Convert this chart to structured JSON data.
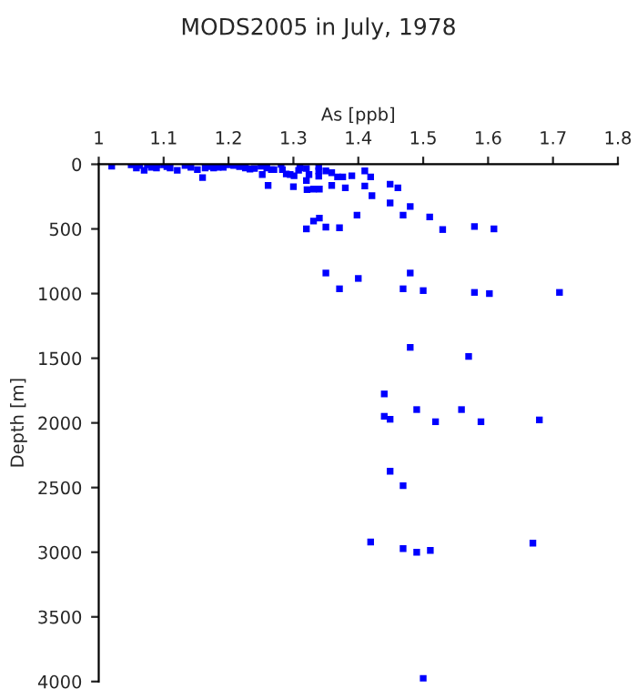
{
  "chart_data": {
    "type": "scatter",
    "title": "MODS2005 in July, 1978",
    "xlabel": "As [ppb]",
    "ylabel": "Depth [m]",
    "xlim": [
      1,
      1.8
    ],
    "xticks": [
      1,
      1.1,
      1.2,
      1.3,
      1.4,
      1.5,
      1.6,
      1.7,
      1.8
    ],
    "ylim": [
      4000,
      0
    ],
    "yticks": [
      0,
      500,
      1000,
      1500,
      2000,
      2500,
      3000,
      3500,
      4000
    ],
    "grid": false,
    "legend": false,
    "marker": "square",
    "series": [
      {
        "color": "#0000ff",
        "x": [
          1.02,
          1.05,
          1.058,
          1.063,
          1.07,
          1.075,
          1.081,
          1.089,
          1.09,
          1.1,
          1.105,
          1.11,
          1.121,
          1.133,
          1.142,
          1.152,
          1.16,
          1.164,
          1.17,
          1.177,
          1.184,
          1.192,
          1.2,
          1.208,
          1.217,
          1.226,
          1.233,
          1.24,
          1.25,
          1.252,
          1.259,
          1.261,
          1.266,
          1.27,
          1.281,
          1.283,
          1.289,
          1.295,
          1.3,
          1.301,
          1.308,
          1.31,
          1.32,
          1.32,
          1.321,
          1.324,
          1.331,
          1.339,
          1.339,
          1.339,
          1.34,
          1.35,
          1.359,
          1.359,
          1.368,
          1.376,
          1.38,
          1.39,
          1.41,
          1.41,
          1.419,
          1.421,
          1.449,
          1.449,
          1.461,
          1.48,
          1.469,
          1.51,
          1.53,
          1.398,
          1.331,
          1.34,
          1.32,
          1.35,
          1.371,
          1.579,
          1.609,
          1.35,
          1.4,
          1.48,
          1.371,
          1.469,
          1.5,
          1.579,
          1.602,
          1.71,
          1.48,
          1.57,
          1.44,
          1.44,
          1.449,
          1.49,
          1.559,
          1.519,
          1.589,
          1.679,
          1.449,
          1.469,
          1.419,
          1.669,
          1.469,
          1.49,
          1.511,
          1.5
        ],
        "values": [
          14,
          5,
          28,
          9,
          47,
          5,
          23,
          28,
          5,
          5,
          19,
          28,
          47,
          9,
          23,
          42,
          103,
          28,
          19,
          28,
          23,
          23,
          5,
          9,
          19,
          28,
          37,
          33,
          14,
          79,
          28,
          164,
          42,
          42,
          0,
          42,
          75,
          79,
          173,
          89,
          47,
          28,
          33,
          126,
          196,
          79,
          192,
          19,
          51,
          93,
          192,
          51,
          65,
          164,
          98,
          98,
          182,
          89,
          51,
          168,
          98,
          243,
          154,
          299,
          182,
          327,
          393,
          407,
          505,
          393,
          439,
          416,
          500,
          486,
          491,
          481,
          500,
          841,
          883,
          841,
          963,
          963,
          977,
          991,
          1000,
          991,
          1416,
          1486,
          1776,
          1949,
          1972,
          1897,
          1897,
          1991,
          1991,
          1977,
          2374,
          2486,
          2921,
          2930,
          2972,
          3000,
          2986,
          3976
        ]
      }
    ]
  }
}
